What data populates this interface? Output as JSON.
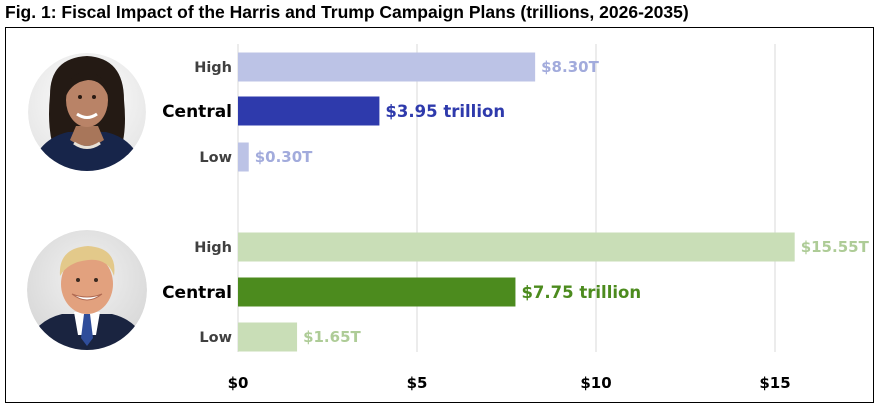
{
  "title": "Fig. 1: Fiscal Impact of the Harris and Trump Campaign Plans (trillions, 2026-2035)",
  "chart_data": {
    "type": "bar",
    "orientation": "horizontal",
    "title": "Fig. 1: Fiscal Impact of the Harris and Trump Campaign Plans (trillions, 2026-2035)",
    "xlim": [
      0,
      17.5
    ],
    "x_ticks": [
      0,
      5,
      10,
      15
    ],
    "x_tick_labels": [
      "$0",
      "$5",
      "$10",
      "$15"
    ],
    "grid": true,
    "groups": [
      {
        "name": "Harris",
        "portrait": "harris-photo",
        "bars": [
          {
            "category": "High",
            "value": 8.3,
            "label": "$8.30T",
            "color": "#BCC3E6",
            "label_color": "#A2ABDC",
            "emphasis": false
          },
          {
            "category": "Central",
            "value": 3.95,
            "label": "$3.95 trillion",
            "color": "#2E3AAC",
            "label_color": "#2E3AAC",
            "emphasis": true
          },
          {
            "category": "Low",
            "value": 0.3,
            "label": "$0.30T",
            "color": "#BCC3E6",
            "label_color": "#A2ABDC",
            "emphasis": false
          }
        ]
      },
      {
        "name": "Trump",
        "portrait": "trump-photo",
        "bars": [
          {
            "category": "High",
            "value": 15.55,
            "label": "$15.55T",
            "color": "#C9DEB7",
            "label_color": "#AECC97",
            "emphasis": false
          },
          {
            "category": "Central",
            "value": 7.75,
            "label": "$7.75 trillion",
            "color": "#4C8B1E",
            "label_color": "#4C8B1E",
            "emphasis": true
          },
          {
            "category": "Low",
            "value": 1.65,
            "label": "$1.65T",
            "color": "#C9DEB7",
            "label_color": "#AECC97",
            "emphasis": false
          }
        ]
      }
    ]
  }
}
